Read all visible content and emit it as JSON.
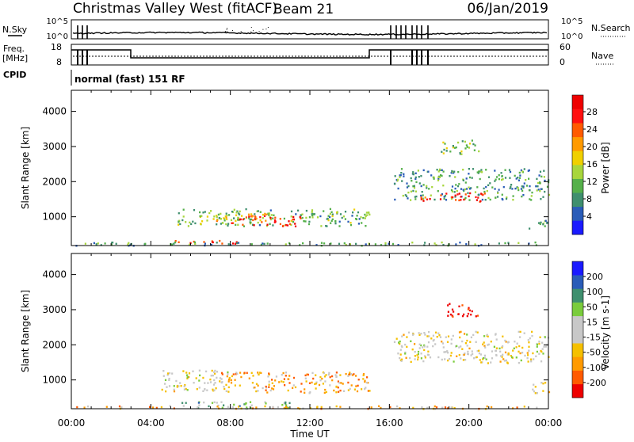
{
  "header": {
    "station": "Christmas Valley West (fitACF)",
    "beam": "Beam 21",
    "date": "06/Jan/2019"
  },
  "top_panels": {
    "nsky_label": "N.Sky",
    "nsky_ticks": [
      "10^5",
      "10^0"
    ],
    "nsearch_label": "N.Search",
    "freq_label_1": "Freq.",
    "freq_label_2": "[MHz]",
    "freq_ticks": [
      "18",
      "8"
    ],
    "nave_label": "Nave",
    "nave_ticks": [
      "60",
      "0"
    ],
    "cpid_label": "CPID",
    "cpid_text": "normal (fast) 151 RF"
  },
  "colors": {
    "power_scale": [
      "#1a1aff",
      "#2a5cb8",
      "#3f8f6e",
      "#55b04a",
      "#a8d63c",
      "#f0d000",
      "#ff9a00",
      "#ff5a00",
      "#ff1010",
      "#ee0000"
    ],
    "velocity_scale": [
      "#ee0000",
      "#ff5a00",
      "#ff9a00",
      "#f5c000",
      "#c8c8c8",
      "#c8c8c8",
      "#7acc3c",
      "#3f8f6e",
      "#2a5cb8",
      "#1a1aff"
    ]
  },
  "chart_data": [
    {
      "type": "heatmap",
      "name": "power",
      "ylabel": "Slant Range [km]",
      "xlabel": "Time UT",
      "x_ticks": [
        "00:00",
        "04:00",
        "08:00",
        "12:00",
        "16:00",
        "20:00",
        "00:00"
      ],
      "y_ticks": [
        1000,
        2000,
        3000,
        4000
      ],
      "ylim": [
        180,
        4600
      ],
      "xlim_hours": [
        0,
        24
      ],
      "colorbar_label": "Power [dB]",
      "colorbar_ticks": [
        "28",
        "24",
        "20",
        "16",
        "12",
        "8",
        "4"
      ],
      "regions": [
        {
          "t": [
            5.3,
            15.0
          ],
          "r": [
            750,
            1250
          ],
          "level": 0.35
        },
        {
          "t": [
            8.0,
            11.5
          ],
          "r": [
            750,
            1050
          ],
          "level": 0.85
        },
        {
          "t": [
            6.5,
            10.0
          ],
          "r": [
            900,
            1150
          ],
          "level": 0.55
        },
        {
          "t": [
            5.0,
            8.5
          ],
          "r": [
            250,
            350
          ],
          "level": 0.9
        },
        {
          "t": [
            0.2,
            24.0
          ],
          "r": [
            200,
            300
          ],
          "level": 0.3
        },
        {
          "t": [
            16.2,
            24.0
          ],
          "r": [
            1500,
            2400
          ],
          "level": 0.3
        },
        {
          "t": [
            17.5,
            21.0
          ],
          "r": [
            1450,
            1700
          ],
          "level": 0.85
        },
        {
          "t": [
            18.5,
            20.5
          ],
          "r": [
            2800,
            3200
          ],
          "level": 0.4
        },
        {
          "t": [
            23.0,
            24.0
          ],
          "r": [
            650,
            950
          ],
          "level": 0.3
        }
      ]
    },
    {
      "type": "heatmap",
      "name": "velocity",
      "ylabel": "Slant Range [km]",
      "xlabel": "Time UT",
      "x_ticks": [
        "00:00",
        "04:00",
        "08:00",
        "12:00",
        "16:00",
        "20:00",
        "00:00"
      ],
      "y_ticks": [
        1000,
        2000,
        3000,
        4000
      ],
      "ylim": [
        180,
        4600
      ],
      "xlim_hours": [
        0,
        24
      ],
      "colorbar_label": "Velocity [m s-1]",
      "colorbar_ticks": [
        "200",
        "100",
        "50",
        "15",
        "-15",
        "-50",
        "-100",
        "-200"
      ],
      "regions": [
        {
          "t": [
            4.5,
            8.0
          ],
          "r": [
            700,
            1300
          ],
          "level": 0.45
        },
        {
          "t": [
            7.2,
            15.0
          ],
          "r": [
            650,
            1250
          ],
          "level": 0.3
        },
        {
          "t": [
            4.8,
            11.0
          ],
          "r": [
            200,
            400
          ],
          "level": 0.65
        },
        {
          "t": [
            0.2,
            24.0
          ],
          "r": [
            200,
            280
          ],
          "level": 0.3
        },
        {
          "t": [
            16.2,
            24.0
          ],
          "r": [
            1500,
            2400
          ],
          "level": 0.45
        },
        {
          "t": [
            18.8,
            20.5
          ],
          "r": [
            2800,
            3200
          ],
          "level": 0.05
        },
        {
          "t": [
            23.0,
            24.0
          ],
          "r": [
            650,
            950
          ],
          "level": 0.45
        }
      ]
    }
  ]
}
